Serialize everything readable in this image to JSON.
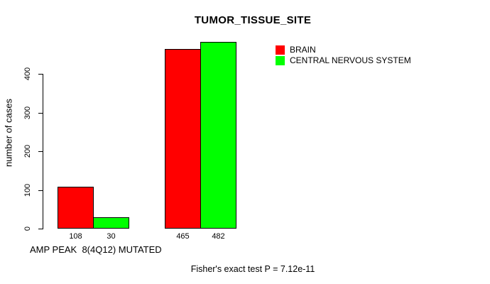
{
  "title": "TUMOR_TISSUE_SITE",
  "y_axis_label": "number of cases",
  "x_axis_label": "AMP PEAK  8(4Q12) MUTATED",
  "footer_text": "Fisher's exact test P = 7.12e-11",
  "legend": {
    "items": [
      {
        "label": "BRAIN",
        "color": "#ff0000"
      },
      {
        "label": "CENTRAL NERVOUS SYSTEM",
        "color": "#00ff00"
      }
    ]
  },
  "chart_data": {
    "type": "bar",
    "title": "TUMOR_TISSUE_SITE",
    "xlabel": "AMP PEAK  8(4Q12) MUTATED",
    "ylabel": "number of cases",
    "ylim": [
      0,
      400
    ],
    "yticks": [
      0,
      100,
      200,
      300,
      400
    ],
    "grid": false,
    "legend_position": "top-right",
    "categories": [
      "",
      ""
    ],
    "series": [
      {
        "name": "BRAIN",
        "color": "#ff0000",
        "values": [
          108,
          465
        ]
      },
      {
        "name": "CENTRAL NERVOUS SYSTEM",
        "color": "#00ff00",
        "values": [
          30,
          482
        ]
      }
    ],
    "bar_value_labels": [
      108,
      30,
      465,
      482
    ],
    "annotation": "Fisher's exact test P = 7.12e-11"
  }
}
